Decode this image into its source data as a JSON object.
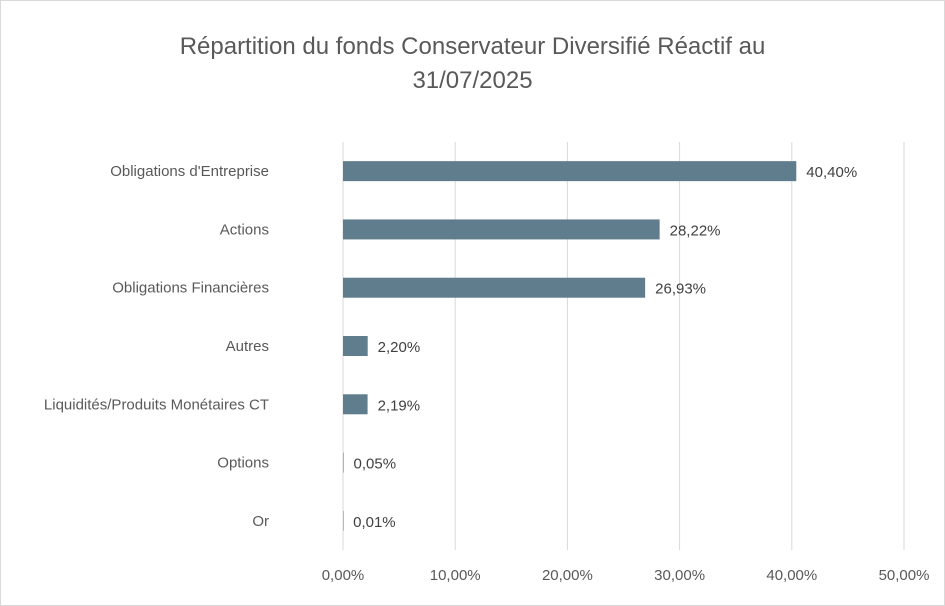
{
  "chart_data": {
    "type": "bar",
    "orientation": "horizontal",
    "title_lines": [
      "Répartition du fonds Conservateur Diversifié Réactif au",
      "31/07/2025"
    ],
    "categories": [
      "Obligations d'Entreprise",
      "Actions",
      "Obligations Financières",
      "Autres",
      "Liquidités/Produits Monétaires CT",
      "Options",
      "Or"
    ],
    "values": [
      40.4,
      28.22,
      26.93,
      2.2,
      2.19,
      0.05,
      0.01
    ],
    "data_labels": [
      "40,40%",
      "28,22%",
      "26,93%",
      "2,20%",
      "2,19%",
      "0,05%",
      "0,01%"
    ],
    "xticks": [
      "0,00%",
      "10,00%",
      "20,00%",
      "30,00%",
      "40,00%",
      "50,00%"
    ],
    "xlim": [
      0,
      50
    ],
    "grid": true,
    "legend": "none",
    "colors": {
      "bar": "#5f7d8c",
      "grid": "#d9d9d9",
      "text": "#595959",
      "label": "#404040"
    }
  }
}
